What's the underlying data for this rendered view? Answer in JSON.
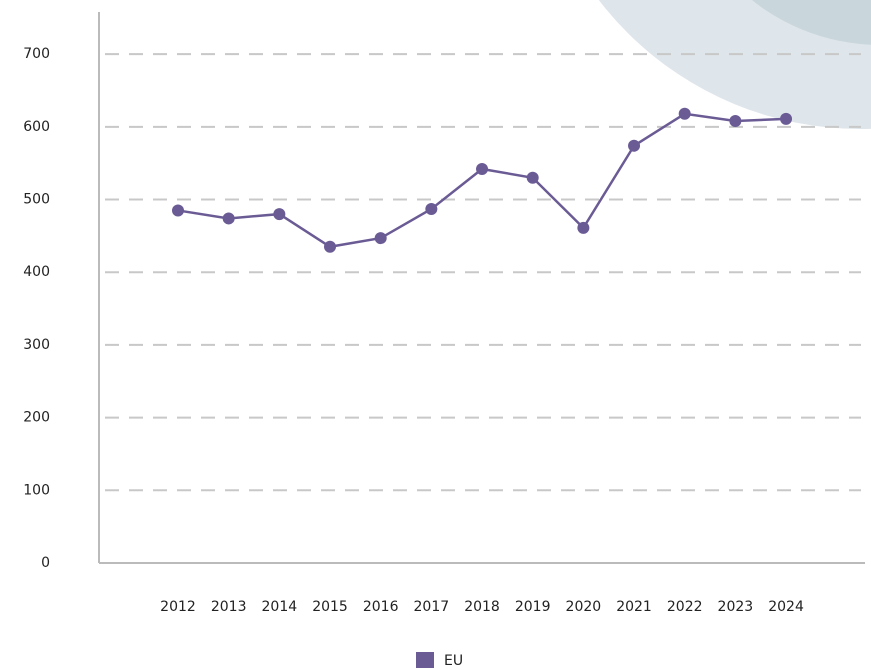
{
  "chart_data": {
    "type": "line",
    "categories": [
      "2012",
      "2013",
      "2014",
      "2015",
      "2016",
      "2017",
      "2018",
      "2019",
      "2020",
      "2021",
      "2022",
      "2023",
      "2024"
    ],
    "series": [
      {
        "name": "EU",
        "color": "#6b5b95",
        "values": [
          485,
          474,
          480,
          435,
          447,
          487,
          542,
          530,
          461,
          574,
          618,
          608,
          611
        ]
      }
    ],
    "ylim": [
      0,
      758
    ],
    "yticks": [
      0,
      100,
      200,
      300,
      400,
      500,
      600,
      700
    ],
    "grid": true,
    "legend": "bottom"
  }
}
